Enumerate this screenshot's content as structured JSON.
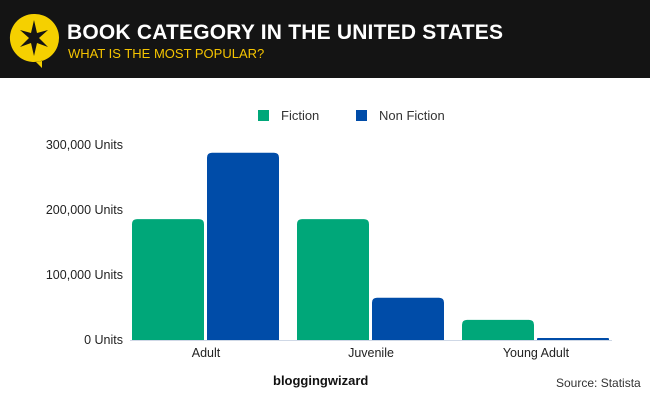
{
  "header": {
    "title": "BOOK CATEGORY IN THE UNITED STATES",
    "subtitle": "WHAT IS THE MOST POPULAR?"
  },
  "chart_data": {
    "type": "bar",
    "title": "BOOK CATEGORY IN THE UNITED STATES",
    "categories": [
      "Adult",
      "Juvenile",
      "Young Adult"
    ],
    "series": [
      {
        "name": "Fiction",
        "color": "#00a779",
        "values": [
          186000,
          186000,
          31000
        ]
      },
      {
        "name": "Non Fiction",
        "color": "#004ca8",
        "values": [
          288000,
          65000,
          3000
        ]
      }
    ],
    "yticks": [
      "0 Units",
      "100,000 Units",
      "200,000 Units",
      "300,000 Units"
    ],
    "ylim": [
      0,
      300000
    ],
    "legend": "top-center",
    "grid": false
  },
  "footer": {
    "brand": "bloggingwizard",
    "source": "Source: Statista"
  }
}
